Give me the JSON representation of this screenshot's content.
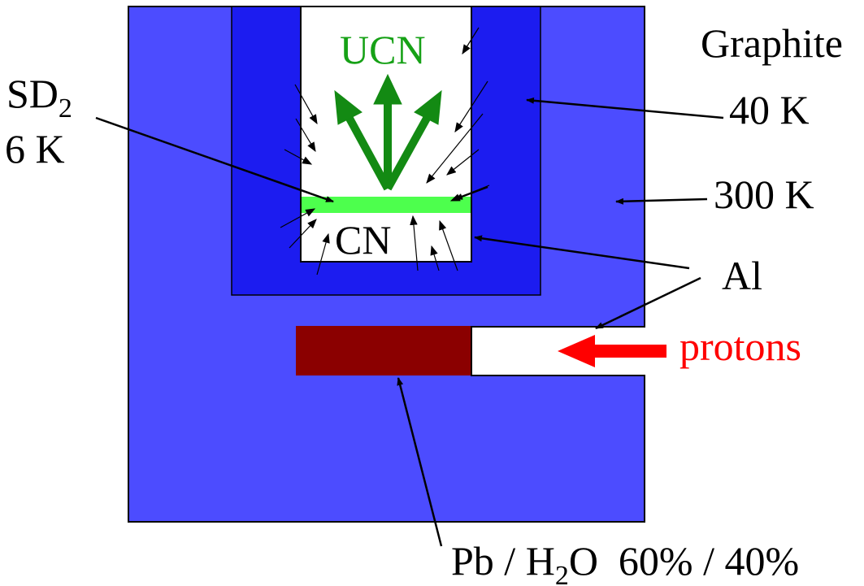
{
  "labels": {
    "ucn": "UCN",
    "graphite": "Graphite",
    "sd2_main": "SD",
    "sd2_sub": "2",
    "sd2_temp": "6 K",
    "temp_40k": "40 K",
    "temp_300k": "300 K",
    "cn": "CN",
    "al": "Al",
    "protons": "protons",
    "pb": "Pb / H",
    "h2o_sub": "2",
    "pb_rest": "O  60% / 40%"
  },
  "colors": {
    "outer_block": "#4c4cff",
    "inner_block": "#1c1cf0",
    "solid_d2": "#4dff4d",
    "target": "#8b0000",
    "ucn_arrows": "#138a13",
    "protons": "#ff0000",
    "ucn_text": "#16a116",
    "outline": "#000000"
  }
}
